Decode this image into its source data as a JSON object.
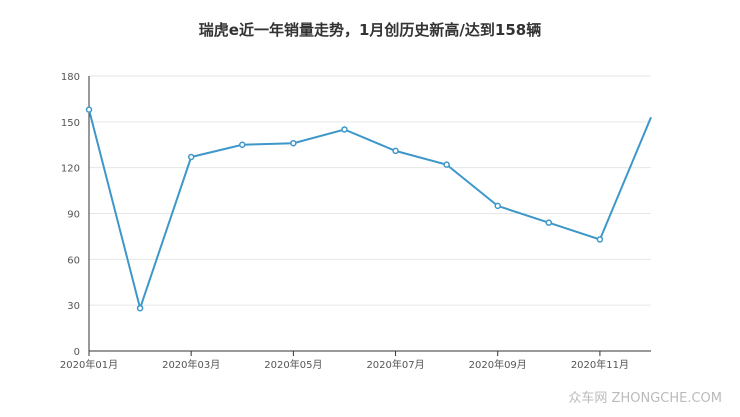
{
  "chart_data": {
    "type": "line",
    "title": "瑞虎e近一年销量走势，1月创历史新高/达到158辆",
    "x": [
      "2020年01月",
      "2020年02月",
      "2020年03月",
      "2020年04月",
      "2020年05月",
      "2020年06月",
      "2020年07月",
      "2020年08月",
      "2020年09月",
      "2020年10月",
      "2020年11月",
      "2020年12月"
    ],
    "x_tick_labels": [
      "2020年01月",
      "2020年03月",
      "2020年05月",
      "2020年07月",
      "2020年09月",
      "2020年11月"
    ],
    "values": [
      158,
      28,
      127,
      135,
      136,
      145,
      131,
      122,
      95,
      84,
      73,
      153
    ],
    "y_ticks": [
      "0",
      "30",
      "60",
      "90",
      "120",
      "150",
      "180"
    ],
    "ylim": [
      0,
      180
    ],
    "grid": true,
    "xlabel": "",
    "ylabel": "",
    "line_color": "#3d97c9"
  },
  "watermark": "众车网 ZHONGCHE.COM"
}
